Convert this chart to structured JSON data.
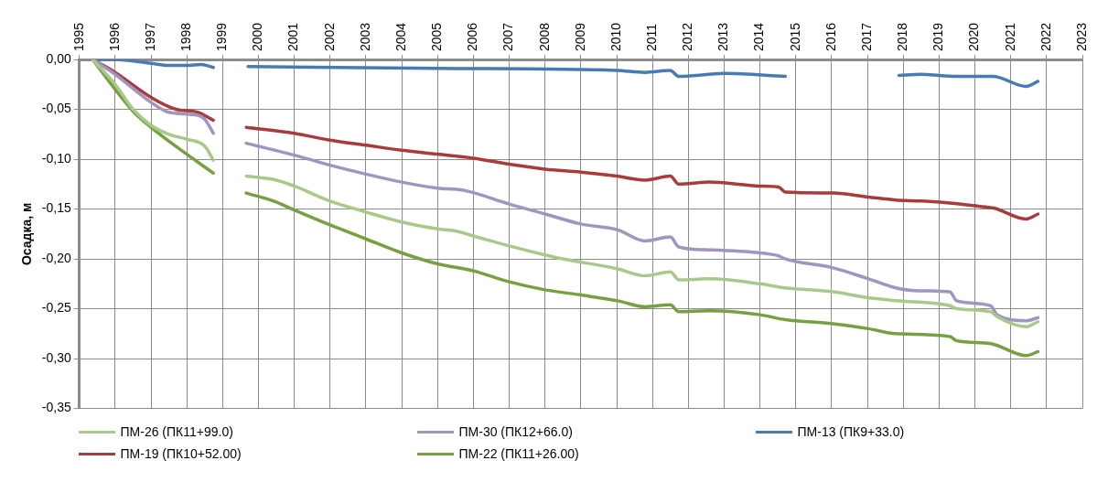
{
  "chart_data": {
    "type": "line",
    "ylabel": "Осадка, м",
    "xlim": [
      1995,
      2023
    ],
    "xticks": [
      1995,
      1996,
      1997,
      1998,
      1999,
      2000,
      2001,
      2002,
      2003,
      2004,
      2005,
      2006,
      2007,
      2008,
      2009,
      2010,
      2011,
      2012,
      2013,
      2014,
      2015,
      2016,
      2017,
      2018,
      2019,
      2020,
      2021,
      2022,
      2023
    ],
    "ylim": [
      -0.35,
      0
    ],
    "yticks": [
      {
        "value": -0.35,
        "label": "-0,35"
      },
      {
        "value": -0.3,
        "label": "-0,30"
      },
      {
        "value": -0.25,
        "label": "-0,25"
      },
      {
        "value": -0.2,
        "label": "-0,20"
      },
      {
        "value": -0.15,
        "label": "-0,15"
      },
      {
        "value": -0.1,
        "label": "-0,10"
      },
      {
        "value": -0.05,
        "label": "-0,05"
      },
      {
        "value": 0,
        "label": "0,00"
      }
    ],
    "grid": true,
    "legend": "bottom",
    "series": [
      {
        "name": "ПМ-26 (ПК11+99.0)",
        "color": "#a9c98a",
        "x": [
          1995.37,
          1996,
          1996.5,
          1997,
          1997.5,
          1998,
          1998.5,
          1998.74,
          1999.2,
          1999.66,
          2000.5,
          2001,
          2002,
          2003,
          2004,
          2005,
          2005.5,
          2006,
          2007,
          2008,
          2008.5,
          2010.03,
          2010.79,
          2011.5,
          2011.73,
          2012.58,
          2014,
          2014.71,
          2016.04,
          2017.03,
          2017.79,
          2019.3,
          2019.49,
          2020.44,
          2020.62,
          2021.43,
          2021.76
        ],
        "values": [
          0,
          -0.025,
          -0.05,
          -0.066,
          -0.075,
          -0.08,
          -0.087,
          -0.101,
          null,
          -0.117,
          -0.121,
          -0.127,
          -0.142,
          -0.153,
          -0.163,
          -0.17,
          -0.172,
          -0.177,
          -0.187,
          -0.196,
          -0.2,
          -0.21,
          -0.217,
          -0.213,
          -0.221,
          -0.22,
          -0.225,
          -0.229,
          -0.233,
          -0.239,
          -0.242,
          -0.247,
          -0.25,
          -0.253,
          -0.258,
          -0.268,
          -0.263
        ]
      },
      {
        "name": "ПМ-30 (ПК12+66.0)",
        "color": "#a393bf",
        "x": [
          1995.37,
          1996,
          1997,
          1997.5,
          1998.3,
          1998.5,
          1998.74,
          1999.2,
          1999.66,
          2001,
          2002,
          2003,
          2004,
          2005,
          2005.7,
          2007,
          2008,
          2009,
          2010.03,
          2010.79,
          2011.5,
          2011.73,
          2012.58,
          2014,
          2014.52,
          2014.71,
          2016.04,
          2017.03,
          2017.79,
          2018.45,
          2019.3,
          2019.49,
          2020.44,
          2020.62,
          2021.43,
          2021.76
        ],
        "values": [
          0,
          -0.015,
          -0.043,
          -0.053,
          -0.056,
          -0.06,
          -0.074,
          null,
          -0.084,
          -0.096,
          -0.106,
          -0.115,
          -0.123,
          -0.129,
          -0.131,
          -0.145,
          -0.155,
          -0.165,
          -0.171,
          -0.182,
          -0.178,
          -0.188,
          -0.191,
          -0.194,
          -0.197,
          -0.2,
          -0.209,
          -0.22,
          -0.229,
          -0.232,
          -0.233,
          -0.242,
          -0.247,
          -0.256,
          -0.262,
          -0.259
        ]
      },
      {
        "name": "ПМ-13 (ПК9+33.0)",
        "color": "#4a7ab5",
        "x": [
          1995.37,
          1996,
          1997,
          1997.5,
          1998,
          1998.4,
          1998.74,
          1999.2,
          1999.71,
          2005,
          2010,
          2010.79,
          2011.5,
          2011.73,
          2013,
          2014.71,
          2016,
          2017.88,
          2018.5,
          2019.5,
          2020.5,
          2021.43,
          2021.76
        ],
        "values": [
          0,
          0,
          -0.004,
          -0.006,
          -0.006,
          -0.005,
          -0.008,
          null,
          -0.007,
          -0.009,
          -0.011,
          -0.013,
          -0.011,
          -0.017,
          -0.014,
          -0.017,
          null,
          -0.016,
          -0.015,
          -0.017,
          -0.017,
          -0.027,
          -0.022
        ]
      },
      {
        "name": "ПМ-19 (ПК10+52.00)",
        "color": "#a83c3c",
        "x": [
          1995.37,
          1996,
          1997,
          1997.7,
          1998.3,
          1998.74,
          1999.2,
          1999.66,
          2001,
          2002,
          2003,
          2004,
          2005,
          2006,
          2007,
          2008,
          2009,
          2010,
          2010.79,
          2011.5,
          2011.73,
          2012.58,
          2014,
          2014.52,
          2014.71,
          2016.04,
          2017.03,
          2017.79,
          2018.5,
          2019.3,
          2020.3,
          2020.53,
          2021.43,
          2021.76
        ],
        "values": [
          0,
          -0.013,
          -0.038,
          -0.05,
          -0.053,
          -0.061,
          null,
          -0.068,
          -0.074,
          -0.081,
          -0.086,
          -0.091,
          -0.095,
          -0.099,
          -0.105,
          -0.11,
          -0.113,
          -0.117,
          -0.121,
          -0.117,
          -0.125,
          -0.123,
          -0.127,
          -0.128,
          -0.133,
          -0.134,
          -0.138,
          -0.141,
          -0.142,
          -0.144,
          -0.148,
          -0.149,
          -0.16,
          -0.155
        ]
      },
      {
        "name": "ПМ-22 (ПК11+26.00)",
        "color": "#77a043",
        "x": [
          1995.37,
          1996,
          1996.5,
          1997,
          1997.5,
          1998,
          1998.74,
          1999.2,
          1999.66,
          2000.43,
          2001,
          2002,
          2003,
          2004,
          2005,
          2006,
          2007,
          2008,
          2008.96,
          2010.03,
          2010.79,
          2011.5,
          2011.73,
          2012.58,
          2014,
          2014.71,
          2016.04,
          2017.03,
          2017.79,
          2019.3,
          2019.49,
          2020.44,
          2021.43,
          2021.76
        ],
        "values": [
          0,
          -0.03,
          -0.052,
          -0.068,
          -0.082,
          -0.095,
          -0.114,
          null,
          -0.134,
          -0.142,
          -0.151,
          -0.166,
          -0.18,
          -0.194,
          -0.205,
          -0.212,
          -0.223,
          -0.231,
          -0.236,
          -0.242,
          -0.248,
          -0.246,
          -0.253,
          -0.252,
          -0.256,
          -0.261,
          -0.265,
          -0.27,
          -0.275,
          -0.278,
          -0.282,
          -0.285,
          -0.297,
          -0.293
        ]
      }
    ]
  }
}
